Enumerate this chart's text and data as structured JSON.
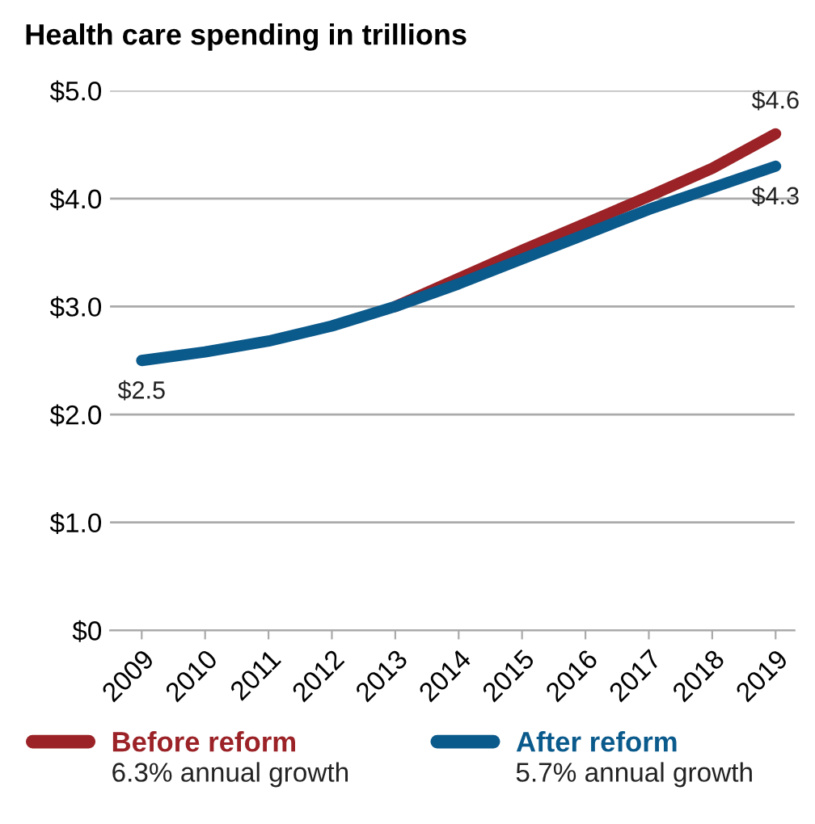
{
  "chart_data": {
    "type": "line",
    "title": "Health care spending in trillions",
    "categories": [
      "2009",
      "2010",
      "2011",
      "2012",
      "2013",
      "2014",
      "2015",
      "2016",
      "2017",
      "2018",
      "2019"
    ],
    "series": [
      {
        "name": "Before reform",
        "color": "#9b2226",
        "values": [
          null,
          null,
          null,
          null,
          3.0,
          3.26,
          3.52,
          3.77,
          4.02,
          4.28,
          4.6
        ],
        "value_labels": [
          null,
          null,
          null,
          null,
          null,
          null,
          null,
          null,
          null,
          null,
          "$4.6"
        ]
      },
      {
        "name": "After reform",
        "color": "#0b5a8c",
        "values": [
          2.5,
          2.58,
          2.68,
          2.82,
          3.0,
          3.21,
          3.44,
          3.67,
          3.9,
          4.1,
          4.3
        ],
        "value_labels": [
          "$2.5",
          null,
          null,
          null,
          null,
          null,
          null,
          null,
          null,
          null,
          "$4.3"
        ]
      }
    ],
    "ylim": [
      0,
      5
    ],
    "yticks": [
      {
        "value": 0,
        "label": "$0"
      },
      {
        "value": 1,
        "label": "$1.0"
      },
      {
        "value": 2,
        "label": "$2.0"
      },
      {
        "value": 3,
        "label": "$3.0"
      },
      {
        "value": 4,
        "label": "$4.0"
      },
      {
        "value": 5,
        "label": "$5.0"
      }
    ],
    "grid": "y",
    "legend": "bottom",
    "marker": "none",
    "line_style": "solid",
    "annotations": [
      "6.3% annual growth",
      "5.7% annual growth"
    ]
  }
}
